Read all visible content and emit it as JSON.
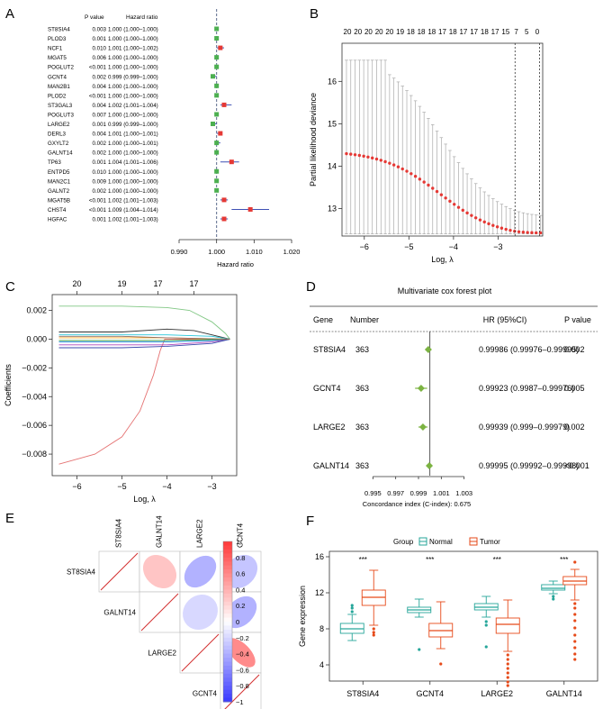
{
  "panels": {
    "a": "A",
    "b": "B",
    "c": "C",
    "d": "D",
    "e": "E",
    "f": "F"
  },
  "chart_data": [
    {
      "panel": "A",
      "type": "forest",
      "header": {
        "pvalue": "P value",
        "hr": "Hazard ratio"
      },
      "rows": [
        {
          "gene": "ST8SIA4",
          "p": "0.003",
          "ci": "1.000 (1.000–1.000)",
          "hr": 1.0,
          "lo": 1.0,
          "hi": 1.0,
          "color": "#4caf50"
        },
        {
          "gene": "PLOD3",
          "p": "0.001",
          "ci": "1.000 (1.000–1.000)",
          "hr": 1.0,
          "lo": 1.0,
          "hi": 1.0,
          "color": "#4caf50"
        },
        {
          "gene": "NCF1",
          "p": "0.010",
          "ci": "1.001 (1.000–1.002)",
          "hr": 1.001,
          "lo": 1.0,
          "hi": 1.002,
          "color": "#e53935"
        },
        {
          "gene": "MGAT5",
          "p": "0.006",
          "ci": "1.000 (1.000–1.000)",
          "hr": 1.0,
          "lo": 1.0,
          "hi": 1.0,
          "color": "#4caf50"
        },
        {
          "gene": "POGLUT2",
          "p": "<0.001",
          "ci": "1.000 (1.000–1.000)",
          "hr": 1.0,
          "lo": 1.0,
          "hi": 1.0,
          "color": "#4caf50"
        },
        {
          "gene": "GCNT4",
          "p": "0.002",
          "ci": "0.999 (0.999–1.000)",
          "hr": 0.999,
          "lo": 0.999,
          "hi": 1.0,
          "color": "#4caf50"
        },
        {
          "gene": "MAN2B1",
          "p": "0.004",
          "ci": "1.000 (1.000–1.000)",
          "hr": 1.0,
          "lo": 1.0,
          "hi": 1.0,
          "color": "#4caf50"
        },
        {
          "gene": "PLOD2",
          "p": "<0.001",
          "ci": "1.000 (1.000–1.000)",
          "hr": 1.0,
          "lo": 1.0,
          "hi": 1.0,
          "color": "#4caf50"
        },
        {
          "gene": "ST3GAL3",
          "p": "0.004",
          "ci": "1.002 (1.001–1.004)",
          "hr": 1.002,
          "lo": 1.001,
          "hi": 1.004,
          "color": "#e53935"
        },
        {
          "gene": "POGLUT3",
          "p": "0.007",
          "ci": "1.000 (1.000–1.000)",
          "hr": 1.0,
          "lo": 1.0,
          "hi": 1.0,
          "color": "#4caf50"
        },
        {
          "gene": "LARGE2",
          "p": "0.001",
          "ci": "0.999 (0.999–1.000)",
          "hr": 0.999,
          "lo": 0.999,
          "hi": 1.0,
          "color": "#4caf50"
        },
        {
          "gene": "DERL3",
          "p": "0.004",
          "ci": "1.001 (1.000–1.001)",
          "hr": 1.001,
          "lo": 1.0,
          "hi": 1.001,
          "color": "#e53935"
        },
        {
          "gene": "GXYLT2",
          "p": "0.002",
          "ci": "1.000 (1.000–1.001)",
          "hr": 1.0,
          "lo": 1.0,
          "hi": 1.001,
          "color": "#4caf50"
        },
        {
          "gene": "GALNT14",
          "p": "0.002",
          "ci": "1.000 (1.000–1.000)",
          "hr": 1.0,
          "lo": 1.0,
          "hi": 1.0,
          "color": "#4caf50"
        },
        {
          "gene": "TP63",
          "p": "0.001",
          "ci": "1.004 (1.001–1.006)",
          "hr": 1.004,
          "lo": 1.001,
          "hi": 1.006,
          "color": "#e53935"
        },
        {
          "gene": "ENTPD5",
          "p": "0.010",
          "ci": "1.000 (1.000–1.000)",
          "hr": 1.0,
          "lo": 1.0,
          "hi": 1.0,
          "color": "#4caf50"
        },
        {
          "gene": "MAN2C1",
          "p": "0.009",
          "ci": "1.000 (1.000–1.000)",
          "hr": 1.0,
          "lo": 1.0,
          "hi": 1.0,
          "color": "#4caf50"
        },
        {
          "gene": "GALNT2",
          "p": "0.002",
          "ci": "1.000 (1.000–1.000)",
          "hr": 1.0,
          "lo": 1.0,
          "hi": 1.0,
          "color": "#4caf50"
        },
        {
          "gene": "MGAT5B",
          "p": "<0.001",
          "ci": "1.002 (1.001–1.003)",
          "hr": 1.002,
          "lo": 1.001,
          "hi": 1.003,
          "color": "#e53935"
        },
        {
          "gene": "CHST4",
          "p": "<0.001",
          "ci": "1.009 (1.004–1.014)",
          "hr": 1.009,
          "lo": 1.004,
          "hi": 1.014,
          "color": "#e53935"
        },
        {
          "gene": "HGFAC",
          "p": "0.001",
          "ci": "1.002 (1.001–1.003)",
          "hr": 1.002,
          "lo": 1.001,
          "hi": 1.003,
          "color": "#e53935"
        }
      ],
      "xlim": [
        0.99,
        1.02
      ],
      "xticks": [
        "0.990",
        "1.000",
        "1.010",
        "1.020"
      ],
      "xlabel": "Hazard ratio"
    },
    {
      "panel": "B",
      "type": "lasso-cv",
      "xlabel": "Log, λ",
      "ylabel": "Partial likelihood deviance",
      "xlim": [
        -6.5,
        -2.0
      ],
      "ylim": [
        12.35,
        16.9
      ],
      "xticks": [
        -6,
        -5,
        -4,
        -3
      ],
      "xtick_labels": [
        "−6",
        "−5",
        "−4",
        "−3"
      ],
      "yticks": [
        13,
        14,
        15,
        16
      ],
      "top_counts": [
        "20",
        "20",
        "20",
        "20",
        "20",
        "19",
        "18",
        "18",
        "18",
        "17",
        "18",
        "17",
        "17",
        "18",
        "17",
        "15",
        "7",
        "5",
        "0"
      ],
      "curve": {
        "x0": -6.4,
        "x1": -2.05,
        "n": 46
      },
      "vlines": [
        -2.62,
        -2.07
      ]
    },
    {
      "panel": "C",
      "type": "lasso-path",
      "xlabel": "Log, λ",
      "ylabel": "Coefficients",
      "xlim": [
        -6.55,
        -2.45
      ],
      "ylim": [
        -0.0095,
        0.0031
      ],
      "xticks": [
        -6,
        -5,
        -4,
        -3
      ],
      "xtick_labels": [
        "−6",
        "−5",
        "−4",
        "−3"
      ],
      "yticks": [
        0.002,
        0.0,
        -0.002,
        -0.004,
        -0.006,
        -0.008
      ],
      "ytick_labels": [
        "0.002",
        "0.000",
        "−0.002",
        "−0.004",
        "−0.006",
        "−0.008"
      ],
      "top_counts": [
        {
          "x": -6.0,
          "label": "20"
        },
        {
          "x": -5.0,
          "label": "19"
        },
        {
          "x": -4.2,
          "label": "17"
        },
        {
          "x": -3.4,
          "label": "17"
        }
      ],
      "paths": [
        {
          "color": "#81c784",
          "points": [
            [
              -6.4,
              0.0023
            ],
            [
              -5,
              0.0023
            ],
            [
              -4,
              0.0022
            ],
            [
              -3.5,
              0.002
            ],
            [
              -3.0,
              0.0012
            ],
            [
              -2.7,
              0.0004
            ],
            [
              -2.6,
              0.0
            ]
          ]
        },
        {
          "color": "#e57373",
          "points": [
            [
              -6.4,
              -0.0087
            ],
            [
              -5.6,
              -0.008
            ],
            [
              -5.0,
              -0.0068
            ],
            [
              -4.6,
              -0.005
            ],
            [
              -4.3,
              -0.0025
            ],
            [
              -4.15,
              -0.0008
            ],
            [
              -4.05,
              0.0
            ],
            [
              -2.6,
              0.0
            ]
          ]
        },
        {
          "color": "#333333",
          "points": [
            [
              -6.4,
              0.0005
            ],
            [
              -5,
              0.0005
            ],
            [
              -4,
              0.0007
            ],
            [
              -3.4,
              0.0006
            ],
            [
              -3,
              0.0003
            ],
            [
              -2.6,
              0.0
            ]
          ]
        },
        {
          "color": "#26c6da",
          "points": [
            [
              -6.4,
              0.0003
            ],
            [
              -5,
              0.0003
            ],
            [
              -4,
              0.0003
            ],
            [
              -3,
              0.0002
            ],
            [
              -2.6,
              0.0
            ]
          ]
        },
        {
          "color": "#1e88e5",
          "points": [
            [
              -6.4,
              -0.0002
            ],
            [
              -5,
              -0.0002
            ],
            [
              -4,
              -0.0002
            ],
            [
              -3,
              -0.0001
            ],
            [
              -2.6,
              0.0
            ]
          ]
        },
        {
          "color": "#ab47bc",
          "points": [
            [
              -6.4,
              -0.0004
            ],
            [
              -5,
              -0.0004
            ],
            [
              -4,
              -0.0004
            ],
            [
              -3,
              -0.0002
            ],
            [
              -2.6,
              0.0
            ]
          ]
        },
        {
          "color": "#3949ab",
          "points": [
            [
              -6.4,
              -0.0006
            ],
            [
              -5,
              -0.0006
            ],
            [
              -4,
              -0.0005
            ],
            [
              -3,
              -0.0003
            ],
            [
              -2.6,
              0.0
            ]
          ]
        },
        {
          "color": "#43a047",
          "points": [
            [
              -6.4,
              -0.0001
            ],
            [
              -5,
              -0.0001
            ],
            [
              -4,
              -0.0001
            ],
            [
              -2.6,
              0.0
            ]
          ]
        },
        {
          "color": "#f9a825",
          "points": [
            [
              -6.4,
              0.0001
            ],
            [
              -5,
              0.0001
            ],
            [
              -4,
              0.0001
            ],
            [
              -2.6,
              0.0
            ]
          ]
        },
        {
          "color": "#8d6e63",
          "points": [
            [
              -6.4,
              0.0002
            ],
            [
              -5,
              0.0002
            ],
            [
              -4,
              0.0001
            ],
            [
              -2.6,
              0.0
            ]
          ]
        }
      ]
    },
    {
      "panel": "D",
      "type": "forest",
      "title": "Multivariate cox forest plot",
      "columns": {
        "gene": "Gene",
        "number": "Number",
        "hr": "HR (95%CI)",
        "p": "P value"
      },
      "rows": [
        {
          "gene": "ST8SIA4",
          "number": "363",
          "hr_text": "0.99986 (0.99976–0.99995)",
          "p": "0.002",
          "hr": 0.99986,
          "lo": 0.99976,
          "hi": 0.99995
        },
        {
          "gene": "GCNT4",
          "number": "363",
          "hr_text": "0.99923 (0.9987–0.99976)",
          "p": "0.005",
          "hr": 0.99923,
          "lo": 0.9987,
          "hi": 0.99976
        },
        {
          "gene": "LARGE2",
          "number": "363",
          "hr_text": "0.99939 (0.999–0.99979)",
          "p": "0.002",
          "hr": 0.99939,
          "lo": 0.999,
          "hi": 0.99979
        },
        {
          "gene": "GALNT14",
          "number": "363",
          "hr_text": "0.99995 (0.99992–0.99998)",
          "p": "<0.001",
          "hr": 0.99995,
          "lo": 0.99992,
          "hi": 0.99998
        }
      ],
      "xlim": [
        0.9945,
        1.0035
      ],
      "xticks": [
        0.995,
        0.997,
        0.999,
        1.001,
        1.003
      ],
      "xtick_labels": [
        "0.995",
        "0.997",
        "0.999",
        "1.001",
        "1.003"
      ],
      "xlabel": "Concordance index (C-index): 0.675",
      "color": "#7cb342"
    },
    {
      "panel": "E",
      "type": "correlation",
      "genes": [
        "ST8SIA4",
        "GALNT14",
        "LARGE2",
        "GCNT4"
      ],
      "matrix": [
        [
          1,
          0.3,
          -0.4,
          -0.3
        ],
        [
          0.3,
          1,
          -0.2,
          -0.4
        ],
        [
          -0.4,
          -0.2,
          1,
          0.6
        ],
        [
          -0.3,
          -0.4,
          0.6,
          1
        ]
      ],
      "colorbar_ticks": [
        "1",
        "0.8",
        "0.6",
        "0.4",
        "0.2",
        "0",
        "−0.2",
        "−0.4",
        "−0.6",
        "−0.8",
        "−1"
      ],
      "colorbar_values": [
        1,
        0.8,
        0.6,
        0.4,
        0.2,
        0,
        -0.2,
        -0.4,
        -0.6,
        -0.8,
        -1
      ]
    },
    {
      "panel": "F",
      "type": "boxplot",
      "legend_title": "Group",
      "groups": [
        {
          "name": "Normal",
          "color": "#26a69a"
        },
        {
          "name": "Tumor",
          "color": "#e64a19"
        }
      ],
      "categories": [
        "ST8SIA4",
        "GCNT4",
        "LARGE2",
        "GALNT14"
      ],
      "ylabel": "Gene expression",
      "ylim": [
        2.2,
        16.6
      ],
      "yticks": [
        4,
        8,
        12,
        16
      ],
      "significance": [
        "***",
        "***",
        "***",
        "***"
      ],
      "boxes": [
        {
          "normal": {
            "min": 6.7,
            "q1": 7.5,
            "med": 8.0,
            "q3": 8.6,
            "max": 9.6,
            "out": [
              9.9,
              10.3,
              10.6
            ]
          },
          "tumor": {
            "min": 8.4,
            "q1": 10.6,
            "med": 11.5,
            "q3": 12.3,
            "max": 14.5,
            "out": [
              8.0,
              7.6,
              7.3
            ]
          }
        },
        {
          "normal": {
            "min": 9.3,
            "q1": 9.8,
            "med": 10.1,
            "q3": 10.4,
            "max": 11.3,
            "out": [
              5.7
            ]
          },
          "tumor": {
            "min": 5.8,
            "q1": 7.1,
            "med": 7.8,
            "q3": 8.6,
            "max": 11.0,
            "out": [
              4.1
            ]
          }
        },
        {
          "normal": {
            "min": 9.3,
            "q1": 10.1,
            "med": 10.4,
            "q3": 10.8,
            "max": 11.6,
            "out": [
              8.8,
              8.4,
              6.0
            ]
          },
          "tumor": {
            "min": 5.5,
            "q1": 7.5,
            "med": 8.5,
            "q3": 9.2,
            "max": 11.2,
            "out": [
              5.1,
              4.6,
              4.1,
              3.6,
              3.1,
              2.6,
              2.1,
              1.7
            ]
          }
        },
        {
          "normal": {
            "min": 11.9,
            "q1": 12.3,
            "med": 12.5,
            "q3": 12.9,
            "max": 13.3,
            "out": [
              11.6,
              11.3
            ]
          },
          "tumor": {
            "min": 11.2,
            "q1": 12.9,
            "med": 13.3,
            "q3": 13.8,
            "max": 14.6,
            "out": [
              15.4,
              10.8,
              10.3,
              9.6,
              8.9,
              8.1,
              7.3,
              6.6,
              5.9,
              5.2,
              4.6
            ]
          }
        }
      ]
    }
  ]
}
